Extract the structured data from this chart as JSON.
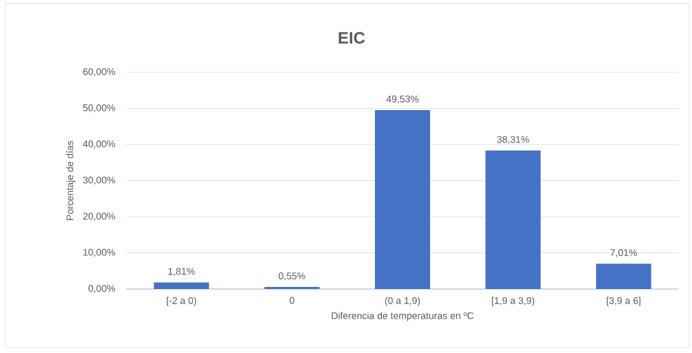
{
  "chart_data": {
    "type": "bar",
    "title": "EIC",
    "xlabel": "Diferencia de temperaturas en ºC",
    "ylabel": "Porcentaje de días",
    "categories": [
      "[-2 a 0)",
      "0",
      "(0 a 1,9)",
      "[1,9 a 3,9)",
      "[3,9 a 6]"
    ],
    "values": [
      1.81,
      0.55,
      49.53,
      38.31,
      7.01
    ],
    "value_labels": [
      "1,81%",
      "0,55%",
      "49,53%",
      "38,31%",
      "7,01%"
    ],
    "color": "#4472c4",
    "ylim": [
      0,
      60
    ],
    "yticks": [
      {
        "value": 0,
        "label": "0,00%"
      },
      {
        "value": 10,
        "label": "10,00%"
      },
      {
        "value": 20,
        "label": "20,00%"
      },
      {
        "value": 30,
        "label": "30,00%"
      },
      {
        "value": 40,
        "label": "40,00%"
      },
      {
        "value": 50,
        "label": "50,00%"
      },
      {
        "value": 60,
        "label": "60,00%"
      }
    ],
    "grid": "y"
  }
}
